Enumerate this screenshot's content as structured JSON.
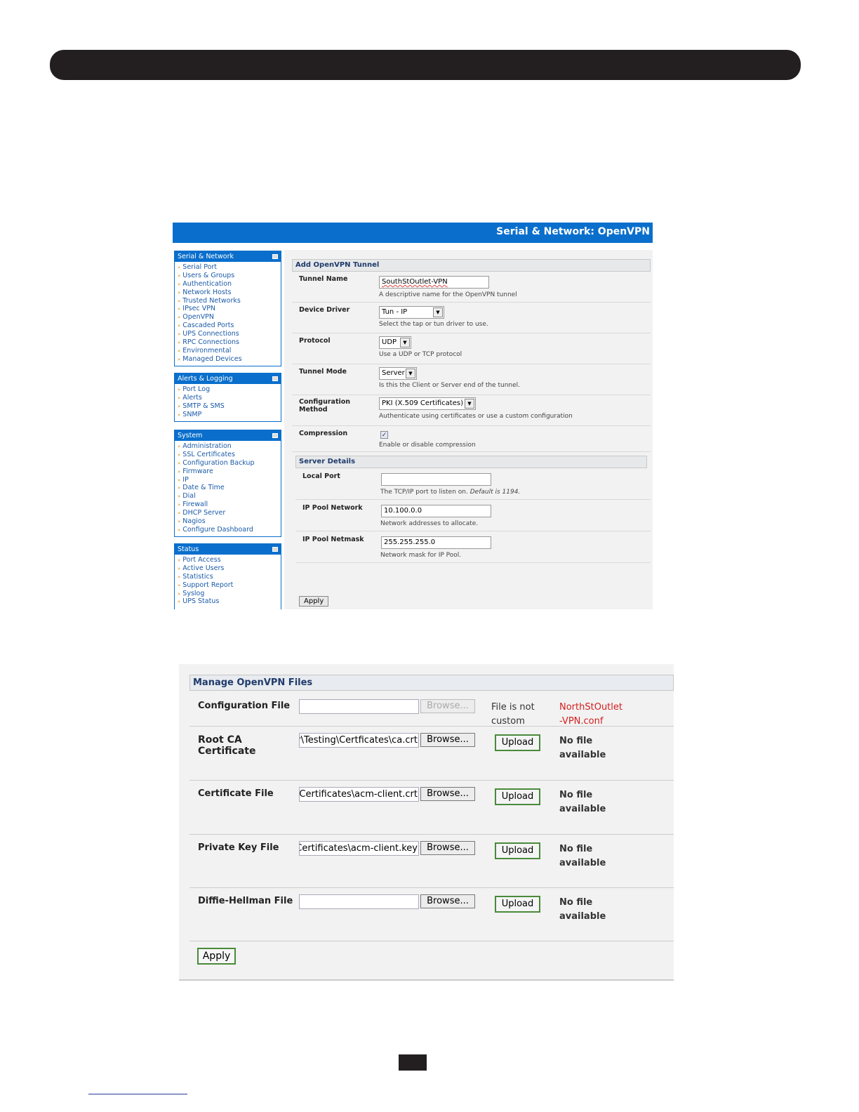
{
  "shot1": {
    "title": "Serial & Network: OpenVPN",
    "sidebar": [
      {
        "header": "Serial & Network",
        "items": [
          "Serial Port",
          "Users & Groups",
          "Authentication",
          "Network Hosts",
          "Trusted Networks",
          "IPsec VPN",
          "OpenVPN",
          "Cascaded Ports",
          "UPS Connections",
          "RPC Connections",
          "Environmental",
          "Managed Devices"
        ]
      },
      {
        "header": "Alerts & Logging",
        "items": [
          "Port Log",
          "Alerts",
          "SMTP & SMS",
          "SNMP"
        ]
      },
      {
        "header": "System",
        "items": [
          "Administration",
          "SSL Certificates",
          "Configuration Backup",
          "Firmware",
          "IP",
          "Date & Time",
          "Dial",
          "Firewall",
          "DHCP Server",
          "Nagios",
          "Configure Dashboard"
        ]
      },
      {
        "header": "Status",
        "items": [
          "Port Access",
          "Active Users",
          "Statistics",
          "Support Report",
          "Syslog",
          "UPS Status"
        ]
      }
    ],
    "section1": "Add OpenVPN Tunnel",
    "tunnel_name": {
      "label": "Tunnel Name",
      "value": "SouthStOutlet-VPN",
      "hint": "A descriptive name for the OpenVPN tunnel"
    },
    "device_driver": {
      "label": "Device Driver",
      "value": "Tun - IP",
      "hint": "Select the tap or tun driver to use."
    },
    "protocol": {
      "label": "Protocol",
      "value": "UDP",
      "hint": "Use a UDP or TCP protocol"
    },
    "tunnel_mode": {
      "label": "Tunnel Mode",
      "value": "Server",
      "hint": "Is this the Client or Server end of the tunnel."
    },
    "config_method": {
      "label1": "Configuration",
      "label2": "Method",
      "value": "PKI (X.509 Certificates)",
      "hint": "Authenticate using certificates or use a custom configuration"
    },
    "compression": {
      "label": "Compression",
      "checked": true,
      "hint": "Enable or disable compression"
    },
    "section2": "Server Details",
    "local_port": {
      "label": "Local Port",
      "value": "",
      "hint": "The TCP/IP port to listen on.",
      "hint_default": "Default is 1194."
    },
    "ip_pool_network": {
      "label": "IP Pool Network",
      "value": "10.100.0.0",
      "hint": "Network addresses to allocate."
    },
    "ip_pool_netmask": {
      "label": "IP Pool Netmask",
      "value": "255.255.255.0",
      "hint": "Network mask for IP Pool."
    },
    "apply": "Apply"
  },
  "shot2": {
    "section": "Manage OpenVPN Files",
    "browse": "Browse...",
    "upload": "Upload",
    "rows": [
      {
        "label": "Configuration File",
        "value": "",
        "status1": "File is not",
        "status2": "custom",
        "file1": "NorthStOutlet",
        "file2": "-VPN.conf"
      },
      {
        "label1": "Root CA",
        "label2": "Certificate",
        "value": "ear\\Testing\\Certficates\\ca.crt",
        "status1": "No file",
        "status2": "available"
      },
      {
        "label": "Certificate File",
        "value": "ting\\Certificates\\acm-client.crt",
        "status1": "No file",
        "status2": "available"
      },
      {
        "label": "Private Key File",
        "value": "ng\\Certificates\\acm-client.key",
        "status1": "No file",
        "status2": "available"
      },
      {
        "label": "Diffie-Hellman File",
        "value": "",
        "status1": "No file",
        "status2": "available"
      }
    ],
    "apply": "Apply"
  },
  "colors": {
    "header_blue": "#0a6fcc",
    "link_blue": "#1a5aa8",
    "conf_file_red": "#d41e1e",
    "upload_border": "#4a8a3a"
  }
}
